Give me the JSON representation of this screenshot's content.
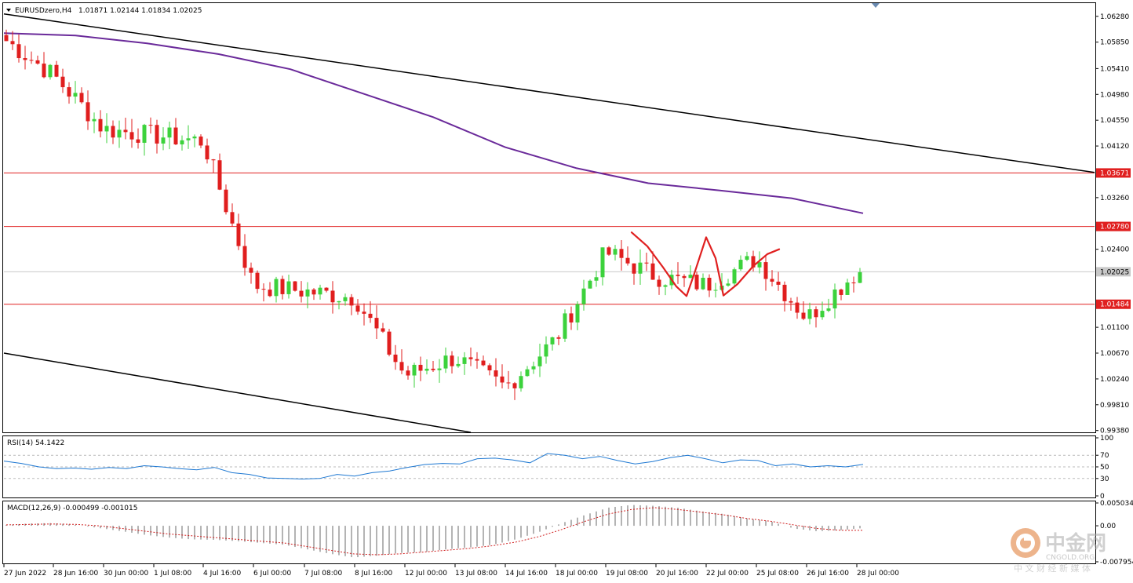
{
  "header": {
    "symbol": "EURUSDzero,H4",
    "ohlc": "1.01871 1.02144 1.01834 1.02025"
  },
  "price_axis": {
    "ticks": [
      "1.06280",
      "1.05850",
      "1.05410",
      "1.04980",
      "1.04550",
      "1.04120",
      "1.03260",
      "1.02400",
      "1.01100",
      "1.00670",
      "1.00240",
      "0.99810",
      "0.99380"
    ],
    "tags": [
      {
        "value": "1.03671",
        "color": "#e02020"
      },
      {
        "value": "1.02780",
        "color": "#e02020"
      },
      {
        "value": "1.02025",
        "color": "#c8c8c8"
      },
      {
        "value": "1.01484",
        "color": "#e02020"
      }
    ]
  },
  "time_axis": [
    "27 Jun 2022",
    "28 Jun 16:00",
    "30 Jun 00:00",
    "1 Jul 08:00",
    "4 Jul 16:00",
    "6 Jul 00:00",
    "7 Jul 08:00",
    "8 Jul 16:00",
    "12 Jul 00:00",
    "13 Jul 08:00",
    "14 Jul 16:00",
    "18 Jul 00:00",
    "19 Jul 08:00",
    "20 Jul 16:00",
    "22 Jul 00:00",
    "25 Jul 08:00",
    "26 Jul 16:00",
    "28 Jul 00:00"
  ],
  "rsi": {
    "label": "RSI(14) 54.1422",
    "ticks": [
      "100",
      "70",
      "50",
      "30",
      "0"
    ],
    "color": "#1e78d2"
  },
  "macd": {
    "label": "MACD(12,26,9) -0.000499 -0.001015",
    "ticks": [
      "0.005034",
      "0.00",
      "-0.007954"
    ],
    "signal_color": "#d02020",
    "hist_color": "#b4b4b4"
  },
  "watermark": {
    "brand": "中金网",
    "domain": "CNGOLD.ORG",
    "tagline": "中 文 财 经 新 媒 体"
  },
  "colors": {
    "bull": "#3cd23c",
    "bear": "#e01e1e",
    "ma": "#6a2a9a",
    "level": "#e02020",
    "trend": "#000000",
    "annotation": "#e02020"
  },
  "chart_data": [
    {
      "type": "candlestick",
      "title": "EURUSDzero,H4",
      "ylim": [
        0.9935,
        1.065
      ],
      "horizontal_levels": [
        1.03671,
        1.0278,
        1.02025,
        1.01484
      ],
      "anchors": [
        {
          "label": "27 Jun 2022",
          "price": 1.059
        },
        {
          "label": "28 Jun 16:00",
          "price": 1.053
        },
        {
          "label": "30 Jun 00:00",
          "price": 1.044
        },
        {
          "label": "1 Jul 08:00",
          "price": 1.043
        },
        {
          "label": "4 Jul 16:00",
          "price": 1.042
        },
        {
          "label": "6 Jul 00:00",
          "price": 1.018
        },
        {
          "label": "7 Jul 08:00",
          "price": 1.017
        },
        {
          "label": "8 Jul 16:00",
          "price": 1.016
        },
        {
          "label": "12 Jul 00:00",
          "price": 1.003
        },
        {
          "label": "13 Jul 08:00",
          "price": 1.006
        },
        {
          "label": "14 Jul 16:00",
          "price": 1.001
        },
        {
          "label": "18 Jul 00:00",
          "price": 1.009
        },
        {
          "label": "19 Jul 08:00",
          "price": 1.0235
        },
        {
          "label": "20 Jul 16:00",
          "price": 1.0195
        },
        {
          "label": "22 Jul 00:00",
          "price": 1.018
        },
        {
          "label": "25 Jul 08:00",
          "price": 1.0225
        },
        {
          "label": "26 Jul 16:00",
          "price": 1.0125
        },
        {
          "label": "28 Jul 00:00",
          "price": 1.02025
        }
      ],
      "moving_average": [
        1.06,
        1.0596,
        1.0583,
        1.0565,
        1.054,
        1.05,
        1.046,
        1.041,
        1.0375,
        1.035,
        1.0338,
        1.0325,
        1.03
      ]
    },
    {
      "type": "line",
      "title": "RSI(14) 54.1422",
      "ylim": [
        0,
        100
      ],
      "levels": [
        70,
        50,
        30
      ],
      "values": [
        60,
        56,
        50,
        47,
        48,
        46,
        49,
        47,
        52,
        50,
        47,
        45,
        49,
        40,
        37,
        31,
        30,
        29,
        30,
        37,
        34,
        40,
        43,
        49,
        54,
        56,
        55,
        64,
        65,
        62,
        57,
        73,
        70,
        64,
        68,
        61,
        55,
        59,
        66,
        70,
        64,
        57,
        62,
        61,
        52,
        55,
        50,
        52,
        50,
        54.1422
      ]
    },
    {
      "type": "bar",
      "title": "MACD(12,26,9) -0.000499 -0.001015",
      "ylim": [
        -0.007954,
        0.005034
      ],
      "histogram": [
        0.0002,
        0.0005,
        0.0006,
        0.0002,
        -0.0005,
        -0.0012,
        -0.002,
        -0.0026,
        -0.003,
        -0.0031,
        -0.0034,
        -0.0038,
        -0.0042,
        -0.0052,
        -0.0062,
        -0.007,
        -0.0066,
        -0.006,
        -0.0058,
        -0.0052,
        -0.0048,
        -0.0042,
        -0.003,
        -0.0014,
        0.0006,
        0.0024,
        0.004,
        0.0046,
        0.0044,
        0.004,
        0.0032,
        0.0026,
        0.0016,
        0.001,
        -0.0006,
        -0.0012,
        -0.001,
        -0.000499
      ],
      "signal": [
        0.0002,
        0.0003,
        0.0004,
        0.0003,
        0.0,
        -0.0006,
        -0.0012,
        -0.0018,
        -0.0022,
        -0.0026,
        -0.003,
        -0.0034,
        -0.0038,
        -0.0046,
        -0.0054,
        -0.0062,
        -0.0064,
        -0.0062,
        -0.0058,
        -0.0054,
        -0.005,
        -0.0044,
        -0.0036,
        -0.0024,
        -0.0008,
        0.001,
        0.0026,
        0.0036,
        0.004,
        0.0036,
        0.003,
        0.0024,
        0.0016,
        0.001,
        0.0002,
        -0.0006,
        -0.001,
        -0.001015
      ]
    }
  ]
}
